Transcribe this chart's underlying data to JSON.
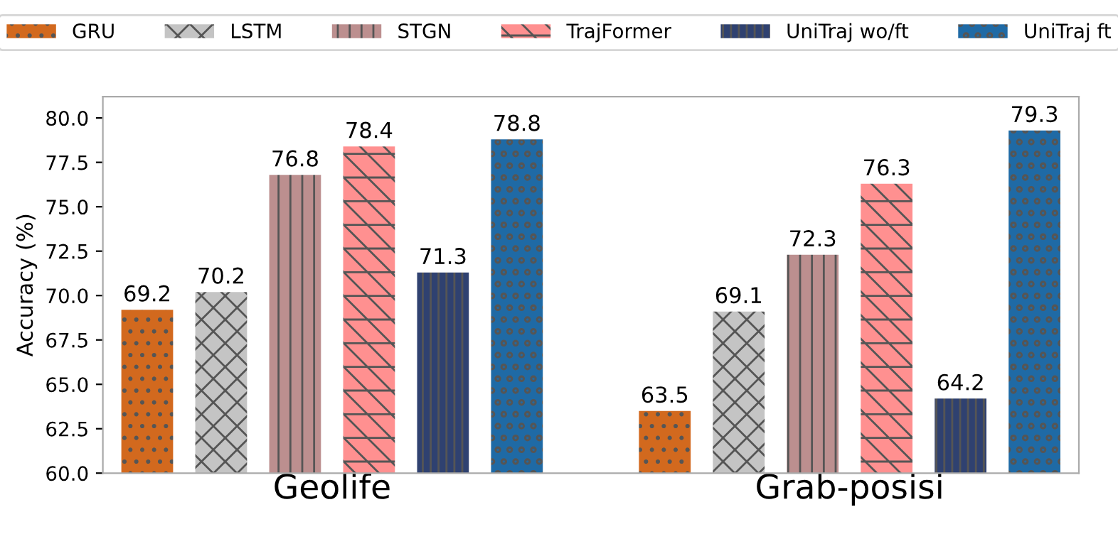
{
  "chart_data": {
    "type": "bar",
    "categories": [
      "Geolife",
      "Grab-posisi"
    ],
    "ylabel": "Accuracy (%)",
    "ylim": [
      60,
      81.2
    ],
    "yticks": [
      {
        "value": 60,
        "label": "60.0"
      },
      {
        "value": 62.5,
        "label": "62.5"
      },
      {
        "value": 65,
        "label": "65.0"
      },
      {
        "value": 67.5,
        "label": "67.5"
      },
      {
        "value": 70,
        "label": "70.0"
      },
      {
        "value": 72.5,
        "label": "72.5"
      },
      {
        "value": 75,
        "label": "75.0"
      },
      {
        "value": 77.5,
        "label": "77.5"
      },
      {
        "value": 80,
        "label": "80.0"
      }
    ],
    "data_labels": true,
    "legend": "top",
    "grid": false,
    "series": [
      {
        "name": "GRU",
        "color": "#d2691e",
        "values": [
          69.2,
          63.5
        ]
      },
      {
        "name": "LSTM",
        "color": "#c4c4c4",
        "values": [
          70.2,
          69.1
        ]
      },
      {
        "name": "STGN",
        "color": "#bc8f8f",
        "values": [
          76.8,
          72.3
        ]
      },
      {
        "name": "TrajFormer",
        "color": "#ff9090",
        "values": [
          78.4,
          76.3
        ]
      },
      {
        "name": "UniTraj wo/ft",
        "color": "#2f4170",
        "values": [
          71.3,
          64.2
        ]
      },
      {
        "name": "UniTraj ft",
        "color": "#1f6aa5",
        "values": [
          78.8,
          79.3
        ]
      }
    ]
  }
}
